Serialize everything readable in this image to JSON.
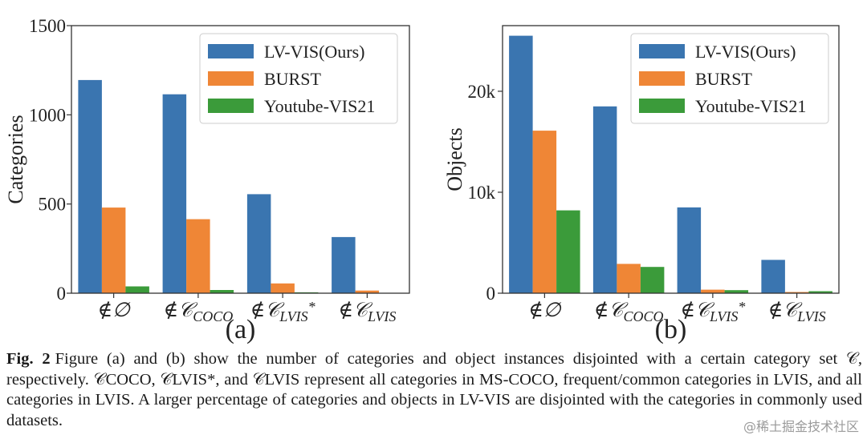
{
  "chart_data": [
    {
      "panel_label": "(a)",
      "type": "bar",
      "ylabel": "Categories",
      "ylim": [
        0,
        1500
      ],
      "yticks": [
        0,
        500,
        1000,
        1500
      ],
      "ytick_labels": [
        "0",
        "500",
        "1000",
        "1500"
      ],
      "categories": [
        "∉∅",
        "∉𝒞COCO",
        "∉𝒞LVIS*",
        "∉𝒞LVIS"
      ],
      "category_parts": [
        {
          "main": "∉∅",
          "sub": "",
          "sup": ""
        },
        {
          "main": "∉𝒞",
          "sub": "COCO",
          "sup": ""
        },
        {
          "main": "∉𝒞",
          "sub": "LVIS",
          "sup": "*"
        },
        {
          "main": "∉𝒞",
          "sub": "LVIS",
          "sup": ""
        }
      ],
      "series": [
        {
          "name": "LV-VIS(Ours)",
          "color": "#3a75b0",
          "values": [
            1195,
            1115,
            555,
            315
          ]
        },
        {
          "name": "BURST",
          "color": "#ef8636",
          "values": [
            480,
            415,
            55,
            15
          ]
        },
        {
          "name": "Youtube-VIS21",
          "color": "#3b9b3a",
          "values": [
            38,
            18,
            5,
            2
          ]
        }
      ],
      "legend_position": "top-right",
      "grid": false
    },
    {
      "panel_label": "(b)",
      "type": "bar",
      "ylabel": "Objects",
      "ylim": [
        0,
        26500
      ],
      "yticks": [
        0,
        10000,
        20000
      ],
      "ytick_labels": [
        "0",
        "10k",
        "20k"
      ],
      "categories": [
        "∉∅",
        "∉𝒞COCO",
        "∉𝒞LVIS*",
        "∉𝒞LVIS"
      ],
      "category_parts": [
        {
          "main": "∉∅",
          "sub": "",
          "sup": ""
        },
        {
          "main": "∉𝒞",
          "sub": "COCO",
          "sup": ""
        },
        {
          "main": "∉𝒞",
          "sub": "LVIS",
          "sup": "*"
        },
        {
          "main": "∉𝒞",
          "sub": "LVIS",
          "sup": ""
        }
      ],
      "series": [
        {
          "name": "LV-VIS(Ours)",
          "color": "#3a75b0",
          "values": [
            25500,
            18500,
            8500,
            3300
          ]
        },
        {
          "name": "BURST",
          "color": "#ef8636",
          "values": [
            16100,
            2900,
            350,
            120
          ]
        },
        {
          "name": "Youtube-VIS21",
          "color": "#3b9b3a",
          "values": [
            8200,
            2600,
            300,
            200
          ]
        }
      ],
      "legend_position": "top-right",
      "grid": false
    }
  ],
  "caption": {
    "label": "Fig. 2",
    "text": "Figure (a) and (b) show the number of categories and object instances disjointed with a certain category set 𝒞, respectively. 𝒞COCO, 𝒞LVIS*, and 𝒞LVIS represent all categories in MS-COCO, frequent/common categories in LVIS, and all categories in LVIS. A larger percentage of categories and objects in LV-VIS are disjointed with the categories in commonly used datasets."
  },
  "watermark": "@稀土掘金技术社区"
}
